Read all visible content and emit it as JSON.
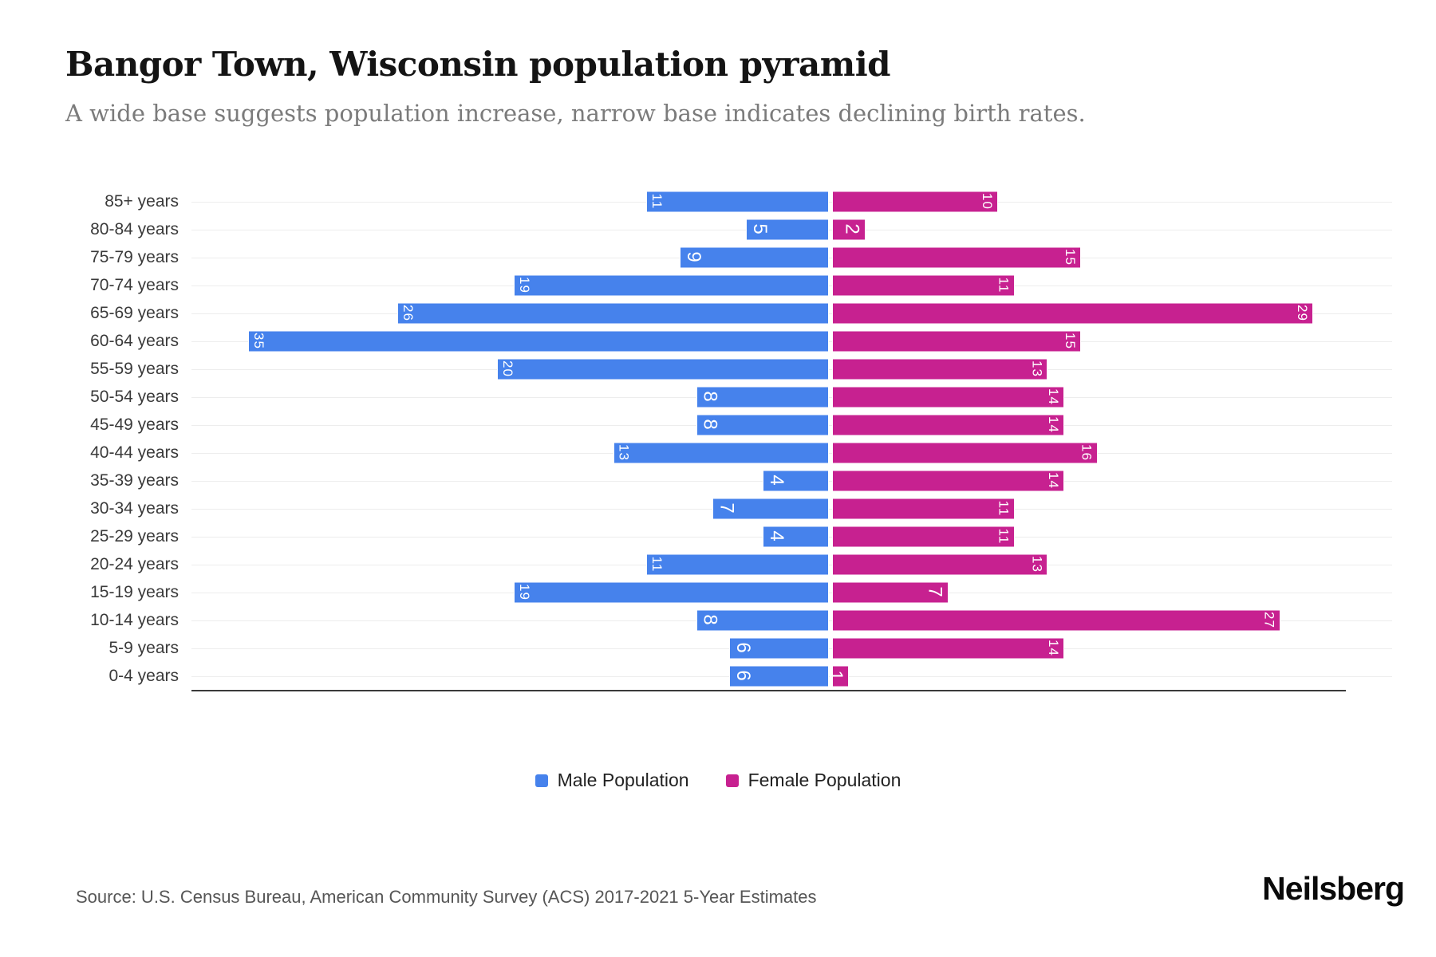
{
  "header": {
    "title": "Bangor Town, Wisconsin population pyramid",
    "subtitle": "A wide base suggests population increase, narrow base indicates declining birth rates."
  },
  "chart_data": {
    "type": "bar",
    "subtype": "population-pyramid",
    "orientation": "horizontal",
    "categories": [
      "85+ years",
      "80-84 years",
      "75-79 years",
      "70-74 years",
      "65-69 years",
      "60-64 years",
      "55-59 years",
      "50-54 years",
      "45-49 years",
      "40-44 years",
      "35-39 years",
      "30-34 years",
      "25-29 years",
      "20-24 years",
      "15-19 years",
      "10-14 years",
      "5-9 years",
      "0-4 years"
    ],
    "series": [
      {
        "name": "Male Population",
        "side": "left",
        "color": "#4682EC",
        "values": [
          11,
          5,
          9,
          19,
          26,
          35,
          20,
          8,
          8,
          13,
          4,
          7,
          4,
          11,
          19,
          8,
          6,
          6
        ]
      },
      {
        "name": "Female Population",
        "side": "right",
        "color": "#C72190",
        "values": [
          10,
          2,
          15,
          11,
          29,
          15,
          13,
          14,
          14,
          16,
          14,
          11,
          11,
          13,
          7,
          27,
          14,
          1
        ]
      }
    ],
    "value_labels": "inside outer end, rotated 90deg, white",
    "axis_max_each_side": 36,
    "grid": true,
    "legend_position": "bottom-center"
  },
  "footer": {
    "source": "Source: U.S. Census Bureau, American Community Survey (ACS) 2017-2021 5-Year Estimates",
    "brand": "Neilsberg"
  }
}
